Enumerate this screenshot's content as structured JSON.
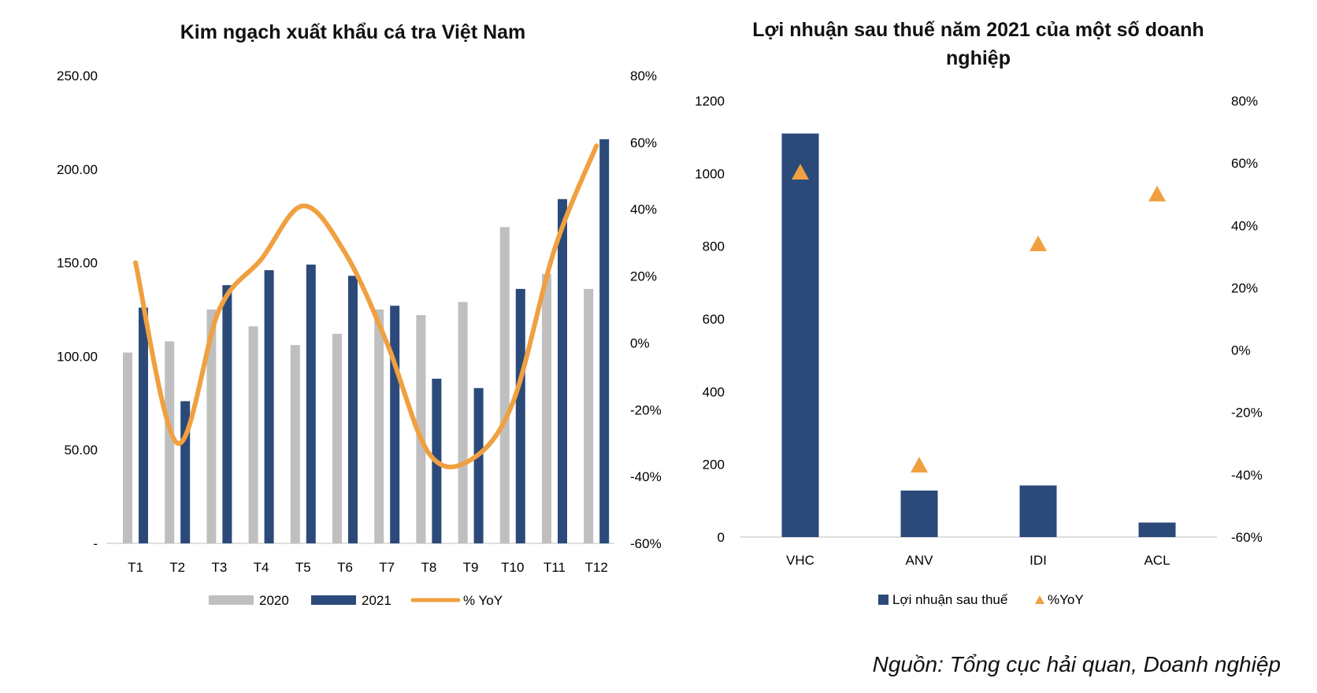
{
  "source_note": "Nguồn: Tổng cục hải quan, Doanh nghiệp",
  "colors": {
    "bar_2020": "#bfbfbf",
    "bar_2021": "#2b4a7a",
    "line_yoy": "#f0a040",
    "marker_yoy": "#f0a040",
    "axis": "#bfbfbf"
  },
  "chart_data": [
    {
      "type": "bar",
      "title": "Kim ngạch xuất khẩu cá tra Việt Nam",
      "categories": [
        "T1",
        "T2",
        "T3",
        "T4",
        "T5",
        "T6",
        "T7",
        "T8",
        "T9",
        "T10",
        "T11",
        "T12"
      ],
      "series": [
        {
          "name": "2020",
          "type": "bar",
          "axis": "left",
          "values": [
            102,
            108,
            125,
            116,
            106,
            112,
            125,
            122,
            129,
            169,
            144,
            136
          ]
        },
        {
          "name": "2021",
          "type": "bar",
          "axis": "left",
          "values": [
            126,
            76,
            138,
            146,
            149,
            143,
            127,
            88,
            83,
            136,
            184,
            216
          ]
        },
        {
          "name": "% YoY",
          "type": "line",
          "axis": "right",
          "values": [
            24,
            -30,
            10,
            25,
            41,
            27,
            0,
            -33,
            -35,
            -18,
            28,
            59
          ]
        }
      ],
      "y_left": {
        "ylim": [
          0,
          250
        ],
        "ticks": [
          "-",
          "50.00",
          "100.00",
          "150.00",
          "200.00",
          "250.00"
        ]
      },
      "y_right": {
        "ylim": [
          -60,
          80
        ],
        "ticks": [
          "-60%",
          "-40%",
          "-20%",
          "0%",
          "20%",
          "40%",
          "60%",
          "80%"
        ]
      },
      "legend": {
        "placement": "bottom",
        "entries": [
          "2020",
          "2021",
          "% YoY"
        ]
      },
      "grid": false
    },
    {
      "type": "bar",
      "title": "Lợi nhuận sau thuế năm 2021 của một số doanh nghiệp",
      "title_lines": [
        "Lợi nhuận sau thuế năm 2021 của một số doanh",
        "nghiệp"
      ],
      "categories": [
        "VHC",
        "ANV",
        "IDI",
        "ACL"
      ],
      "series": [
        {
          "name": "Lợi nhuận sau thuế",
          "type": "bar",
          "axis": "left",
          "values": [
            1110,
            128,
            142,
            40
          ]
        },
        {
          "name": "%YoY",
          "type": "scatter",
          "marker": "triangle",
          "axis": "right",
          "values": [
            57,
            -37,
            34,
            50
          ]
        }
      ],
      "y_left": {
        "ylim": [
          0,
          1200
        ],
        "ticks": [
          "0",
          "200",
          "400",
          "600",
          "800",
          "1000",
          "1200"
        ]
      },
      "y_right": {
        "ylim": [
          -60,
          80
        ],
        "ticks": [
          "-60%",
          "-40%",
          "-20%",
          "0%",
          "20%",
          "40%",
          "60%",
          "80%"
        ]
      },
      "legend": {
        "placement": "bottom",
        "entries": [
          "Lợi nhuận sau thuế",
          "%YoY"
        ]
      },
      "grid": false
    }
  ]
}
